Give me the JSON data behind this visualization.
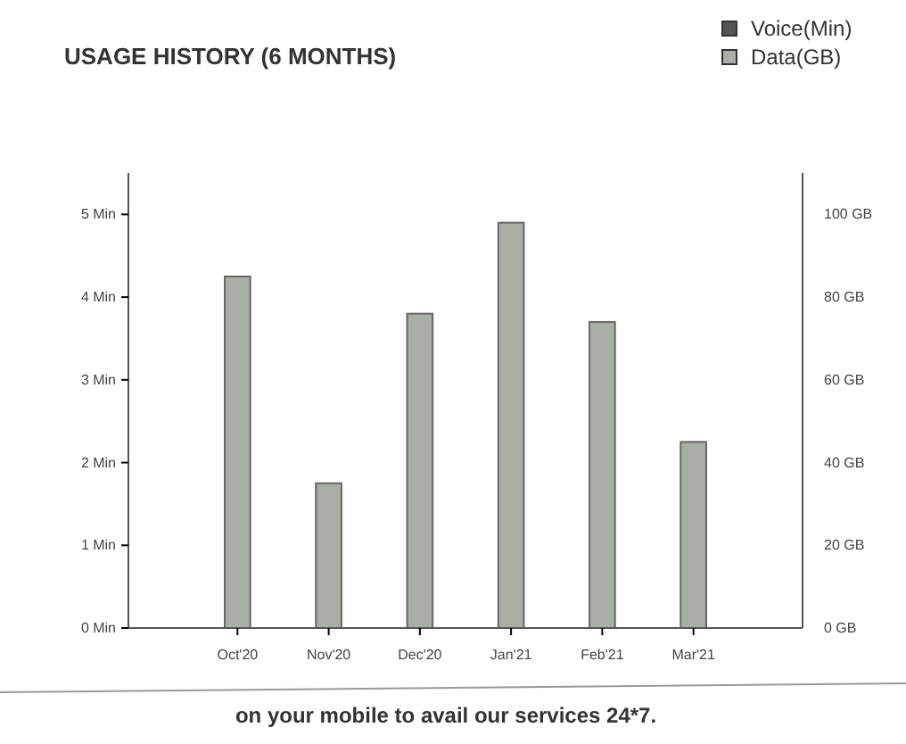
{
  "chart_data": {
    "type": "bar",
    "title": "USAGE HISTORY (6 MONTHS)",
    "categories": [
      "Oct'20",
      "Nov'20",
      "Dec'20",
      "Jan'21",
      "Feb'21",
      "Mar'21"
    ],
    "series": [
      {
        "name": "Voice(Min)",
        "color": "#555555",
        "values": [
          null,
          null,
          null,
          null,
          null,
          null
        ]
      },
      {
        "name": "Data(GB)",
        "color": "#a9aea6",
        "axis": "y2",
        "values": [
          85,
          35,
          76,
          98,
          74,
          45
        ]
      }
    ],
    "ylim": [
      0,
      5.5
    ],
    "yticks": [
      {
        "value": 0,
        "label": "0 Min"
      },
      {
        "value": 1,
        "label": "1 Min"
      },
      {
        "value": 2,
        "label": "2 Min"
      },
      {
        "value": 3,
        "label": "3 Min"
      },
      {
        "value": 4,
        "label": "4 Min"
      },
      {
        "value": 5,
        "label": "5 Min"
      }
    ],
    "y2lim": [
      0,
      110
    ],
    "y2ticks": [
      {
        "value": 0,
        "label": "0 GB"
      },
      {
        "value": 20,
        "label": "20 GB"
      },
      {
        "value": 40,
        "label": "40 GB"
      },
      {
        "value": 60,
        "label": "60 GB"
      },
      {
        "value": 80,
        "label": "80 GB"
      },
      {
        "value": 100,
        "label": "100 GB"
      }
    ],
    "legend": "top right",
    "grid": false,
    "annotations": [
      "on your mobile to avail our services 24*7."
    ]
  }
}
